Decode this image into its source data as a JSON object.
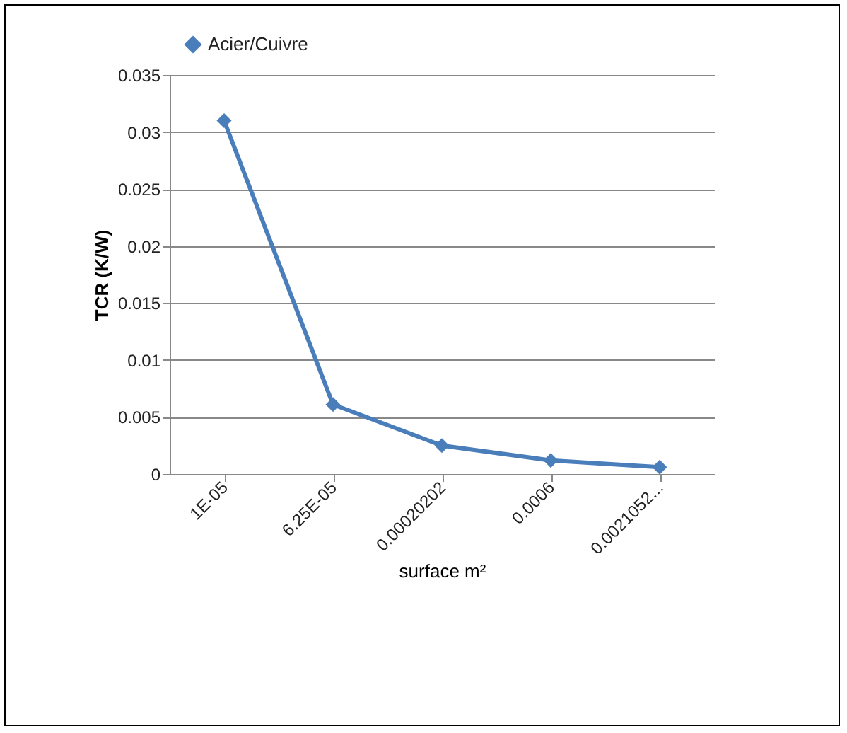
{
  "chart_data": {
    "type": "line",
    "xlabel": "surface m²",
    "ylabel": "TCR (K/W)",
    "categories": [
      "1E-05",
      "6.25E-05",
      "0.00020202",
      "0.0006",
      "0.0021052..."
    ],
    "series": [
      {
        "name": "Acier/Cuivre",
        "color": "#4a7ebb",
        "values": [
          0.031,
          0.0061,
          0.0025,
          0.0012,
          0.0006
        ]
      }
    ],
    "ylim": [
      0,
      0.035
    ],
    "yticks": [
      0,
      0.005,
      0.01,
      0.015,
      0.02,
      0.025,
      0.03,
      0.035
    ],
    "grid": "y",
    "legend": "top left",
    "marker": "diamond",
    "line_style": "solid"
  }
}
